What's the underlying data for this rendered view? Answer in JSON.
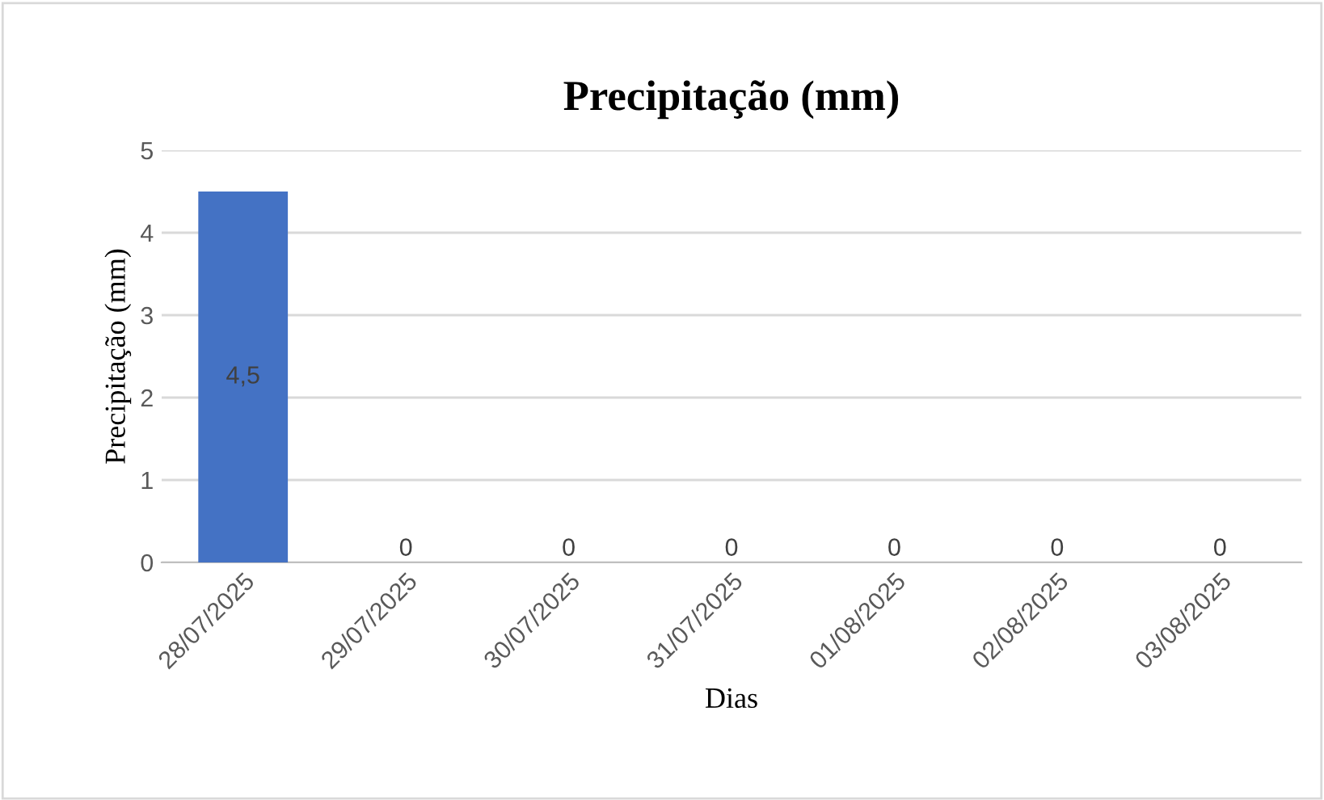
{
  "chart_data": {
    "type": "bar",
    "title": "Precipitação (mm)",
    "xlabel": "Dias",
    "ylabel": "Precipitação (mm)",
    "categories": [
      "28/07/2025",
      "29/07/2025",
      "30/07/2025",
      "31/07/2025",
      "01/08/2025",
      "02/08/2025",
      "03/08/2025"
    ],
    "values": [
      4.5,
      0,
      0,
      0,
      0,
      0,
      0
    ],
    "value_labels": [
      "4,5",
      "0",
      "0",
      "0",
      "0",
      "0",
      "0"
    ],
    "color": "#4472c4",
    "ylim": [
      0,
      5
    ],
    "yticks": [
      0,
      1,
      2,
      3,
      4,
      5
    ],
    "grid": "y",
    "legend": false
  }
}
